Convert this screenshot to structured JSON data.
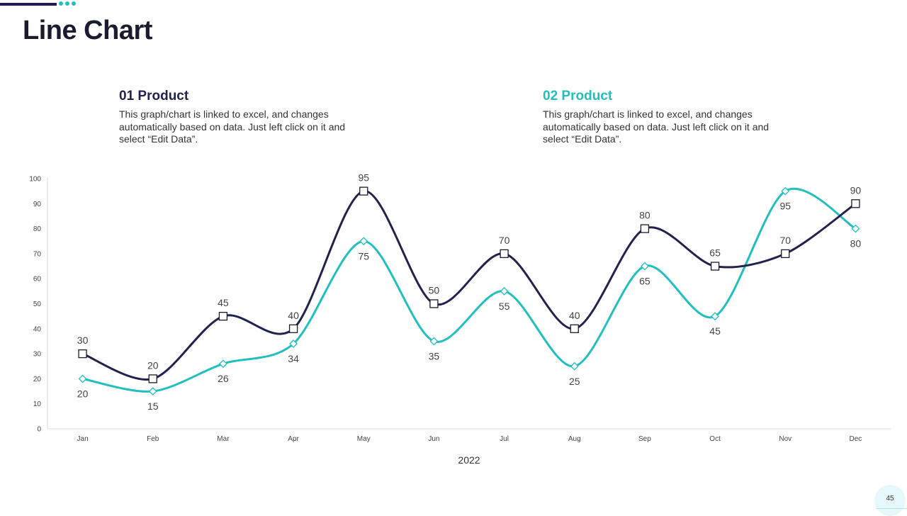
{
  "page": {
    "title": "Line Chart",
    "page_number": "45"
  },
  "products": [
    {
      "heading": "01 Product",
      "text": "This graph/chart is linked to excel, and changes automatically based on data. Just left click on it and select “Edit Data”.",
      "color": "#22224e"
    },
    {
      "heading": "02 Product",
      "text": "This graph/chart is linked to excel, and changes automatically based on data. Just left click on it and select “Edit Data”.",
      "color": "#21bfbf"
    }
  ],
  "chart_data": {
    "type": "line",
    "categories": [
      "Jan",
      "Feb",
      "Mar",
      "Apr",
      "May",
      "Jun",
      "Jul",
      "Aug",
      "Sep",
      "Oct",
      "Nov",
      "Dec"
    ],
    "xlabel": "2022",
    "ylabel": "",
    "ylim": [
      0,
      100
    ],
    "yticks": [
      0,
      10,
      20,
      30,
      40,
      50,
      60,
      70,
      80,
      90,
      100
    ],
    "grid": false,
    "smooth": true,
    "series": [
      {
        "values": [
          30,
          20,
          45,
          40,
          95,
          50,
          70,
          40,
          80,
          65,
          70,
          90
        ],
        "color": "#22224e",
        "marker": "square",
        "label_position": "above"
      },
      {
        "values": [
          20,
          15,
          26,
          34,
          75,
          35,
          55,
          25,
          65,
          45,
          95,
          80
        ],
        "color": "#21bfbf",
        "marker": "diamond",
        "label_position": "below"
      }
    ]
  }
}
